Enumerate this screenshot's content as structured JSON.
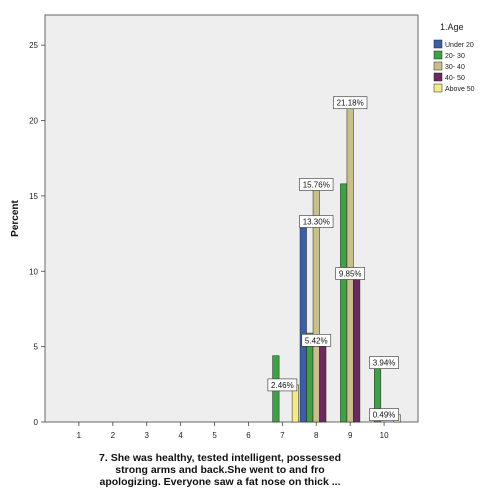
{
  "chart_data": {
    "type": "bar",
    "title": "",
    "xlabel": "",
    "ylabel": "Percent",
    "ylim": [
      0,
      27
    ],
    "yticks": [
      0,
      5,
      10,
      15,
      20,
      25
    ],
    "categories": [
      "1",
      "2",
      "3",
      "4",
      "5",
      "6",
      "7",
      "8",
      "9",
      "10"
    ],
    "grid": false,
    "legend_title": "1.Age",
    "legend_position": "top-right",
    "series": [
      {
        "name": "Under 20",
        "color": "#3a5fa8",
        "values": [
          0,
          0,
          0,
          0,
          0,
          0,
          0,
          13.3,
          0,
          0
        ]
      },
      {
        "name": "20- 30",
        "color": "#3fa048",
        "values": [
          0,
          0,
          0,
          0,
          0,
          0,
          4.4,
          5.9,
          15.8,
          3.94
        ]
      },
      {
        "name": "30- 40",
        "color": "#c8bf8a",
        "values": [
          0,
          0,
          0,
          0,
          0,
          0,
          0,
          15.76,
          21.18,
          0
        ]
      },
      {
        "name": "40- 50",
        "color": "#6a2a5c",
        "values": [
          0,
          0,
          0,
          0,
          0,
          0,
          0,
          5.42,
          9.85,
          0
        ]
      },
      {
        "name": "Above 50",
        "color": "#f3ec8a",
        "values": [
          0,
          0,
          0,
          0,
          0,
          0,
          2.46,
          0,
          0,
          0.49
        ]
      }
    ],
    "data_labels": [
      {
        "text": "2.46%",
        "category": "7",
        "value": 2.46
      },
      {
        "text": "13.30%",
        "category": "8",
        "value": 13.3
      },
      {
        "text": "15.76%",
        "category": "8",
        "value": 15.76
      },
      {
        "text": "5.42%",
        "category": "8",
        "value": 5.42
      },
      {
        "text": "21.18%",
        "category": "9",
        "value": 21.18
      },
      {
        "text": "9.85%",
        "category": "9",
        "value": 9.85
      },
      {
        "text": "3.94%",
        "category": "10",
        "value": 3.94
      },
      {
        "text": "0.49%",
        "category": "10",
        "value": 0.49
      }
    ]
  },
  "caption": {
    "line1": "7.  She was healthy, tested intelligent,  possessed",
    "line2": "strong arms and back.She went to and fro",
    "line3": "apologizing.  Everyone saw a fat nose on thick ..."
  },
  "colors": {
    "plot_background": "#eeeeee",
    "label_box": "#ffffff"
  }
}
